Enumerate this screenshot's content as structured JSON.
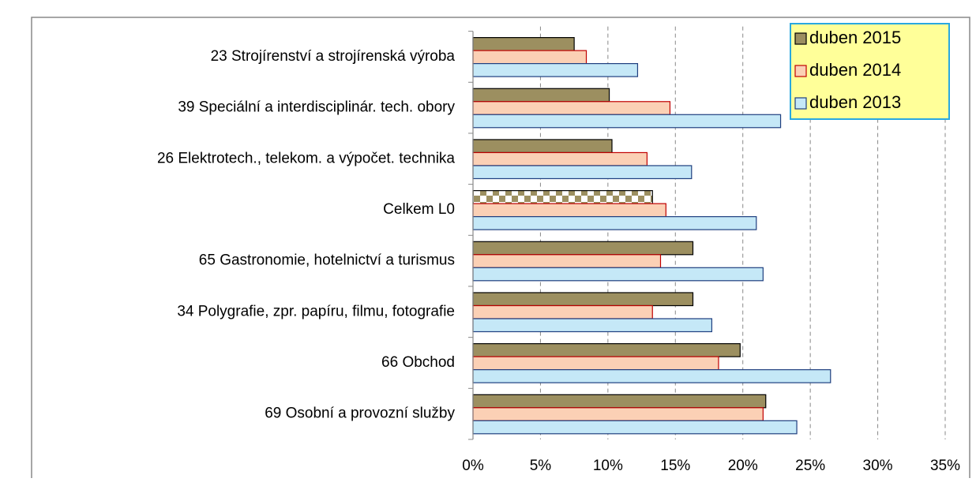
{
  "chart_data": {
    "type": "hbar",
    "categories": [
      "23 Strojírenství a strojírenská výroba",
      "39 Speciální a interdisciplinár. tech. obory",
      "26 Elektrotech., telekom. a výpočet. technika",
      "Celkem L0",
      "65 Gastronomie, hotelnictví a turismus",
      "34 Polygrafie, zpr. papíru, filmu, fotografie",
      "66 Obchod",
      "69 Osobní a provozní služby"
    ],
    "series": [
      {
        "name": "duben 2015",
        "color": "#9c8f60",
        "border": "#000000",
        "values": [
          7.5,
          10.1,
          10.3,
          13.3,
          16.3,
          16.3,
          19.8,
          21.7
        ]
      },
      {
        "name": "duben 2014",
        "color": "#fbd0b5",
        "border": "#c00000",
        "values": [
          8.4,
          14.6,
          12.9,
          14.3,
          13.9,
          13.3,
          18.2,
          21.5
        ]
      },
      {
        "name": "duben 2013",
        "color": "#c5e8f7",
        "border": "#1f3f7f",
        "values": [
          12.2,
          22.8,
          16.2,
          21.0,
          21.5,
          17.7,
          26.5,
          24.0
        ]
      }
    ],
    "highlight_index": 3,
    "xlim": [
      0,
      35
    ],
    "xticks": [
      {
        "value": 0,
        "label": "0%"
      },
      {
        "value": 5,
        "label": "5%"
      },
      {
        "value": 10,
        "label": "10%"
      },
      {
        "value": 15,
        "label": "15%"
      },
      {
        "value": 20,
        "label": "20%"
      },
      {
        "value": 25,
        "label": "25%"
      },
      {
        "value": 30,
        "label": "30%"
      },
      {
        "value": 35,
        "label": "35%"
      }
    ],
    "grid": true,
    "legend": "top-right"
  }
}
